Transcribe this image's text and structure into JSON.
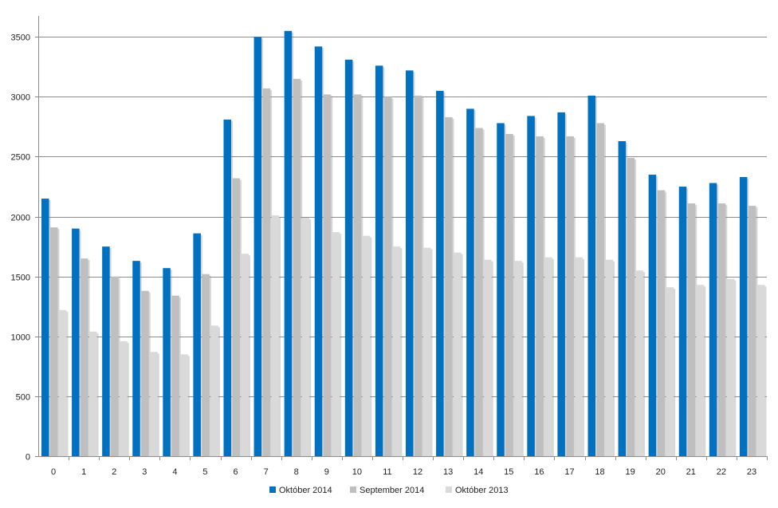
{
  "chart_data": {
    "type": "bar",
    "title": "",
    "xlabel": "",
    "ylabel": "",
    "ylim": [
      0,
      3500
    ],
    "yticks": [
      0,
      500,
      1000,
      1500,
      2000,
      2500,
      3000,
      3500
    ],
    "grid": true,
    "legend_position": "bottom",
    "categories": [
      "0",
      "1",
      "2",
      "3",
      "4",
      "5",
      "6",
      "7",
      "8",
      "9",
      "10",
      "11",
      "12",
      "13",
      "14",
      "15",
      "16",
      "17",
      "18",
      "19",
      "20",
      "21",
      "22",
      "23"
    ],
    "series": [
      {
        "name": "Október 2014",
        "color": "#0070c0",
        "values": [
          2150,
          1900,
          1750,
          1630,
          1570,
          1860,
          2810,
          3500,
          3550,
          3420,
          3310,
          3260,
          3220,
          3050,
          2900,
          2780,
          2840,
          2870,
          3010,
          2630,
          2350,
          2250,
          2280,
          2330
        ]
      },
      {
        "name": "September 2014",
        "color": "#bfbfbf",
        "values": [
          1910,
          1650,
          1500,
          1380,
          1340,
          1520,
          2320,
          3070,
          3150,
          3020,
          3020,
          3000,
          3010,
          2830,
          2740,
          2690,
          2670,
          2670,
          2780,
          2490,
          2220,
          2110,
          2110,
          2090
        ]
      },
      {
        "name": "Október 2013",
        "color": "#d9d9d9",
        "values": [
          1220,
          1040,
          960,
          870,
          850,
          1090,
          1690,
          2010,
          1990,
          1870,
          1840,
          1750,
          1740,
          1700,
          1640,
          1630,
          1660,
          1660,
          1640,
          1550,
          1410,
          1430,
          1480,
          1430
        ]
      }
    ]
  }
}
